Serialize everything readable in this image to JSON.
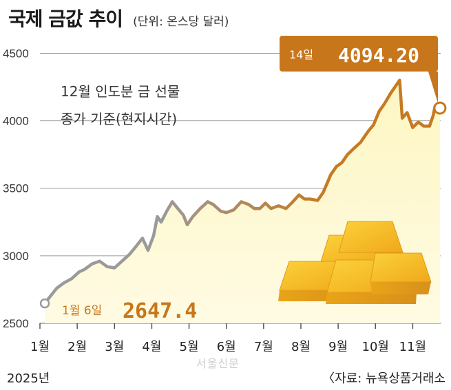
{
  "title": "국제 금값 추이",
  "unit": "(단위: 온스당 달러)",
  "note_lines": [
    "12월 인도분 금 선물",
    "종가 기준(현지시간)"
  ],
  "year_label": "2025년",
  "source": "〈자료: 뉴욕상품거래소",
  "watermark": "서울신문",
  "colors": {
    "line_start": "#9a9a9a",
    "line_end": "#c67a22",
    "area_fill": "#fdf6c2",
    "label_bg": "#c8761b",
    "grid": "#9a9a9a"
  },
  "chart_data": {
    "type": "area",
    "title": "국제 금값 추이",
    "unit": "온스당 달러",
    "ylim": [
      2500,
      4650
    ],
    "yticks": [
      2500,
      3000,
      3500,
      4000,
      4500
    ],
    "x_categories": [
      "1월",
      "2월",
      "3월",
      "4월",
      "5월",
      "6월",
      "7월",
      "8월",
      "9월",
      "10월",
      "11월"
    ],
    "x_domain": [
      1.0,
      11.75
    ],
    "grid": true,
    "series": [
      {
        "x": [
          1.13,
          1.25,
          1.45,
          1.65,
          1.85,
          2.05,
          2.2,
          2.4,
          2.6,
          2.8,
          3.0,
          3.2,
          3.4,
          3.55,
          3.75,
          3.9,
          4.05,
          4.15,
          4.25,
          4.4,
          4.55,
          4.7,
          4.85,
          4.95,
          5.1,
          5.3,
          5.5,
          5.65,
          5.85,
          6.0,
          6.2,
          6.4,
          6.6,
          6.75,
          6.9,
          7.05,
          7.2,
          7.4,
          7.6,
          7.75,
          7.95,
          8.1,
          8.25,
          8.45,
          8.6,
          8.8,
          8.95,
          9.1,
          9.25,
          9.4,
          9.6,
          9.8,
          9.95,
          10.1,
          10.25,
          10.4,
          10.55,
          10.65,
          10.72,
          10.85,
          11.0,
          11.15,
          11.3,
          11.45,
          11.55,
          11.6,
          11.67,
          11.73
        ],
        "values": [
          2647.4,
          2690,
          2760,
          2800,
          2830,
          2880,
          2900,
          2940,
          2960,
          2920,
          2910,
          2960,
          3010,
          3060,
          3130,
          3040,
          3150,
          3290,
          3250,
          3330,
          3400,
          3350,
          3300,
          3230,
          3290,
          3350,
          3400,
          3380,
          3330,
          3320,
          3340,
          3400,
          3380,
          3350,
          3350,
          3390,
          3350,
          3370,
          3350,
          3390,
          3450,
          3420,
          3420,
          3410,
          3470,
          3600,
          3660,
          3690,
          3750,
          3790,
          3840,
          3920,
          3970,
          4070,
          4130,
          4200,
          4260,
          4300,
          4020,
          4060,
          3950,
          3990,
          3960,
          3960,
          4040,
          4110,
          4090,
          4094.2
        ]
      }
    ],
    "annotations": [
      {
        "x": 1.13,
        "value": 2647.4,
        "day_label": "1월 6일",
        "value_label": "2647.4"
      },
      {
        "x": 11.73,
        "value": 4094.2,
        "day_label": "14일",
        "value_label": "4094.20"
      }
    ]
  }
}
